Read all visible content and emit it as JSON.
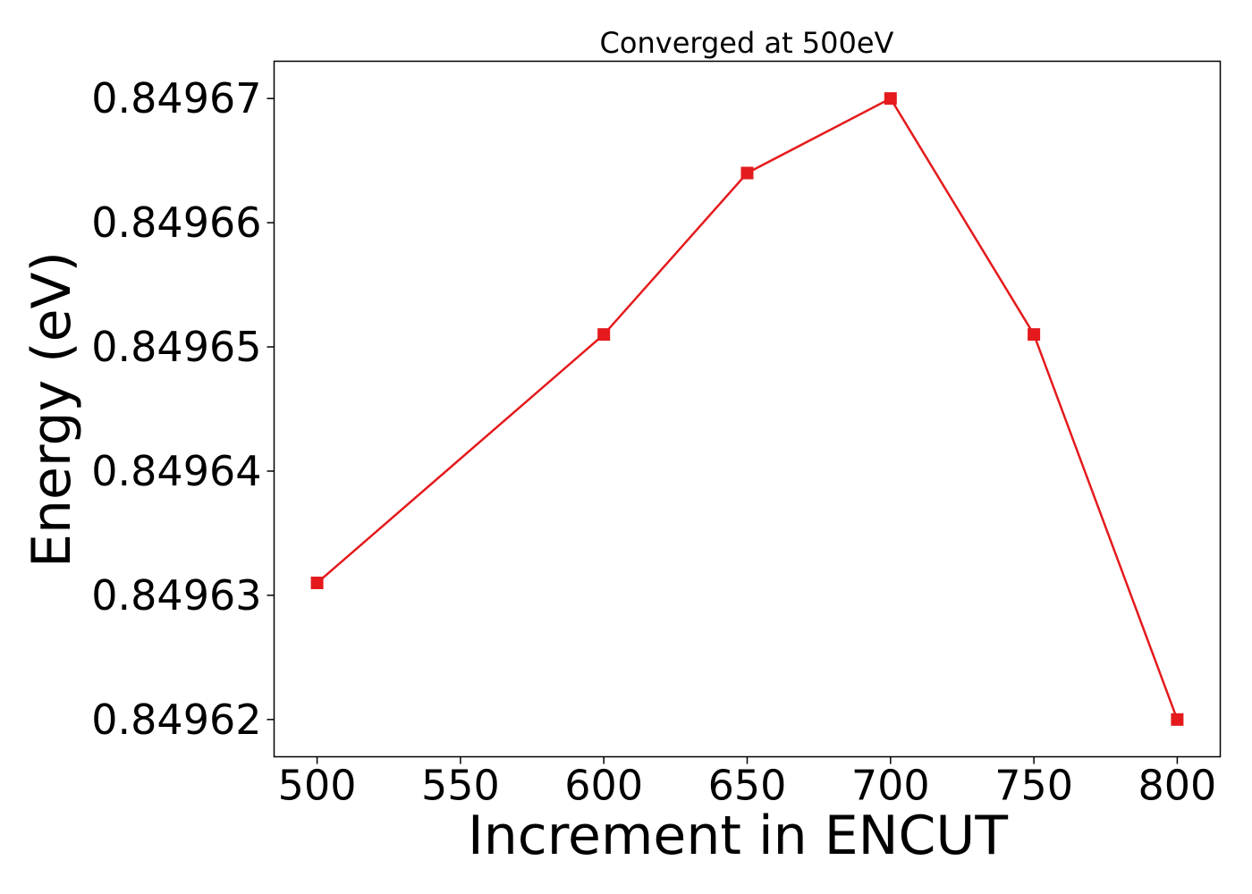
{
  "chart_data": {
    "type": "line",
    "title": "Converged at 500eV",
    "xlabel": "Increment in ENCUT",
    "ylabel": "Energy (eV)",
    "x": [
      500,
      600,
      650,
      700,
      750,
      800
    ],
    "y": [
      0.849631,
      0.849651,
      0.849664,
      0.84967,
      0.849651,
      0.84962
    ],
    "x_ticks": [
      500,
      550,
      600,
      650,
      700,
      750,
      800
    ],
    "x_tick_labels": [
      "500",
      "550",
      "600",
      "650",
      "700",
      "750",
      "800"
    ],
    "y_ticks": [
      0.84962,
      0.84963,
      0.84964,
      0.84965,
      0.84966,
      0.84967
    ],
    "y_tick_labels": [
      "0.84962",
      "0.84963",
      "0.84964",
      "0.84965",
      "0.84966",
      "0.84967"
    ],
    "xlim": [
      485,
      815
    ],
    "ylim": [
      0.849617,
      0.849673
    ],
    "marker": "square",
    "series_color": "#e41a1c",
    "grid": false
  }
}
